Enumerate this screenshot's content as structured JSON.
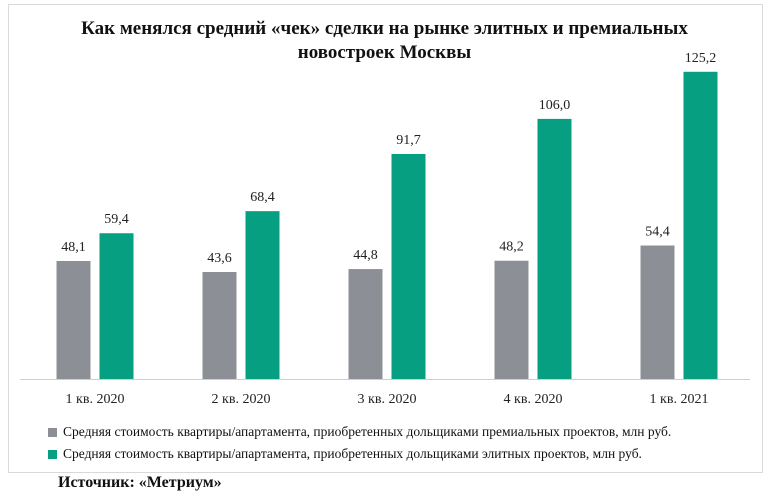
{
  "colors": {
    "premium": "#8c9096",
    "elite": "#069f82",
    "axis": "#cfcfcf"
  },
  "source": "Источник: «Метриум»",
  "chart_data": {
    "type": "bar",
    "title": [
      "Как менялся средний «чек» сделки на рынке элитных и премиальных",
      "новостроек  Москвы"
    ],
    "categories": [
      "1 кв. 2020",
      "2 кв. 2020",
      "3 кв. 2020",
      "4 кв. 2020",
      "1 кв. 2021"
    ],
    "series": [
      {
        "name": "Средняя стоимость квартиры/апартамента, приобретенных дольщиками премиальных проектов, млн руб.",
        "values": [
          48.1,
          43.6,
          44.8,
          48.2,
          54.4
        ],
        "labels": [
          "48,1",
          "43,6",
          "44,8",
          "48,2",
          "54,4"
        ],
        "color": "#8c9096"
      },
      {
        "name": "Средняя стоимость квартиры/апартамента, приобретенных дольщиками элитных проектов, млн руб.",
        "values": [
          59.4,
          68.4,
          91.7,
          106.0,
          125.2
        ],
        "labels": [
          "59,4",
          "68,4",
          "91,7",
          "106,0",
          "125,2"
        ],
        "color": "#069f82"
      }
    ],
    "xlabel": "",
    "ylabel": "",
    "ylim": [
      0,
      130
    ],
    "grid": false,
    "legend_position": "bottom-left"
  }
}
